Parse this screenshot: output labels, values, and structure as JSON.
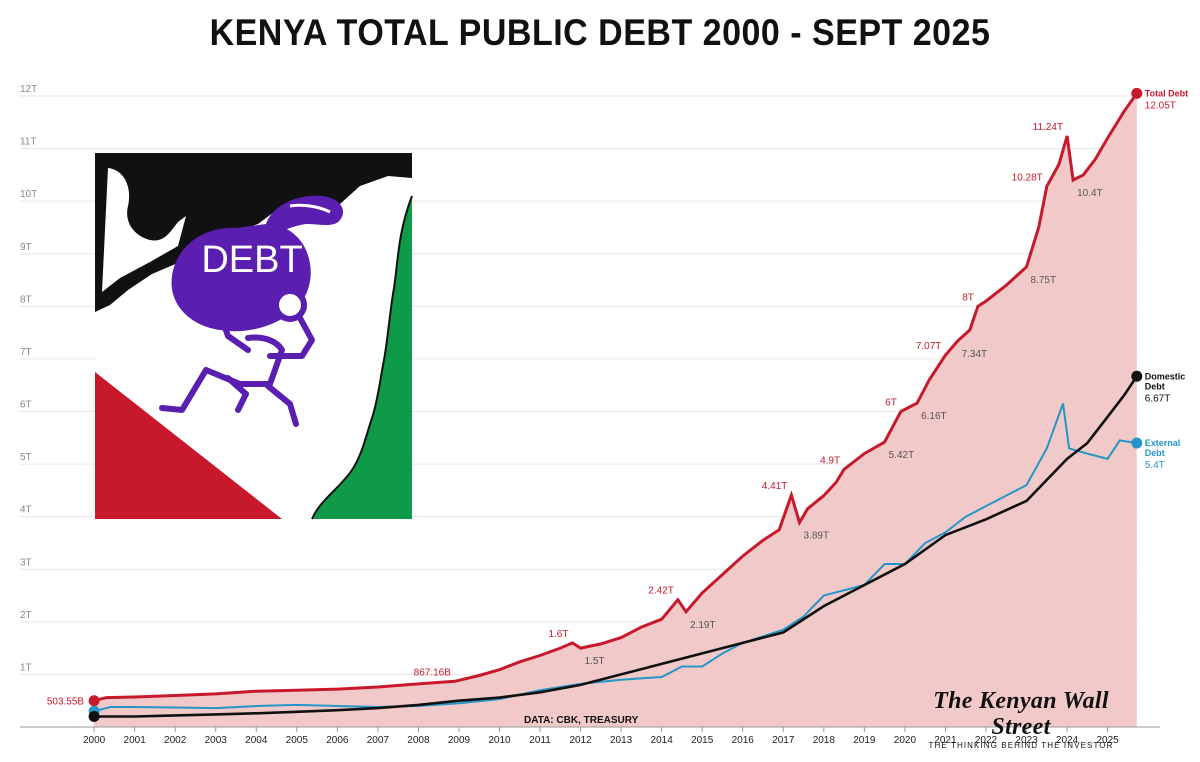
{
  "title": "KENYA TOTAL PUBLIC DEBT 2000 - SEPT 2025",
  "source": "DATA: CBK, TREASURY",
  "brand": {
    "name": "The Kenyan Wall Street",
    "tagline": "THE THINKING BEHIND THE INVESTOR"
  },
  "logo": {
    "text": "DEBT",
    "icon": "debt-bag-kenya-map-icon",
    "colors": {
      "black": "#111111",
      "red": "#c8192c",
      "green": "#0e9a48",
      "purple": "#5a1fb0"
    }
  },
  "colors": {
    "total": "#c8192c",
    "total_fill": "#f2c9c9",
    "domestic": "#111111",
    "external": "#2596c7",
    "grid": "#e6e6e6"
  },
  "chart_data": {
    "type": "area",
    "title": "KENYA TOTAL PUBLIC DEBT 2000 - SEPT 2025",
    "xlabel": "",
    "ylabel": "",
    "xlim": [
      1999.8,
      2025.75
    ],
    "ylim": [
      0,
      12
    ],
    "y_unit": "T",
    "grid": true,
    "legend": "direct labels at line ends",
    "x_ticks": [
      "2000",
      "2001",
      "2002",
      "2003",
      "2004",
      "2005",
      "2006",
      "2007",
      "2008",
      "2009",
      "2010",
      "2011",
      "2012",
      "2013",
      "2014",
      "2015",
      "2016",
      "2017",
      "2018",
      "2019",
      "2020",
      "2021",
      "2022",
      "2023",
      "2024",
      "2025"
    ],
    "y_ticks": [
      "1T",
      "2T",
      "3T",
      "4T",
      "5T",
      "6T",
      "7T",
      "8T",
      "9T",
      "10T",
      "11T",
      "12T"
    ],
    "series": [
      {
        "name": "Total Debt",
        "end_label": "12.05T",
        "points": [
          [
            2000.0,
            0.5
          ],
          [
            2000.3,
            0.56
          ],
          [
            2001,
            0.57
          ],
          [
            2002,
            0.6
          ],
          [
            2003,
            0.63
          ],
          [
            2004,
            0.68
          ],
          [
            2005,
            0.7
          ],
          [
            2006,
            0.72
          ],
          [
            2007,
            0.76
          ],
          [
            2008,
            0.82
          ],
          [
            2008.9,
            0.87
          ],
          [
            2009.5,
            0.98
          ],
          [
            2010,
            1.09
          ],
          [
            2010.5,
            1.24
          ],
          [
            2011,
            1.36
          ],
          [
            2011.5,
            1.5
          ],
          [
            2011.8,
            1.6
          ],
          [
            2012.0,
            1.5
          ],
          [
            2012.5,
            1.58
          ],
          [
            2013,
            1.7
          ],
          [
            2013.5,
            1.9
          ],
          [
            2014,
            2.05
          ],
          [
            2014.4,
            2.42
          ],
          [
            2014.6,
            2.19
          ],
          [
            2015,
            2.55
          ],
          [
            2015.5,
            2.9
          ],
          [
            2016,
            3.25
          ],
          [
            2016.5,
            3.55
          ],
          [
            2016.9,
            3.75
          ],
          [
            2017.2,
            4.41
          ],
          [
            2017.4,
            3.89
          ],
          [
            2017.6,
            4.15
          ],
          [
            2018,
            4.4
          ],
          [
            2018.3,
            4.65
          ],
          [
            2018.5,
            4.9
          ],
          [
            2019,
            5.2
          ],
          [
            2019.5,
            5.42
          ],
          [
            2019.9,
            6.0
          ],
          [
            2020.3,
            6.16
          ],
          [
            2020.6,
            6.6
          ],
          [
            2021.0,
            7.07
          ],
          [
            2021.3,
            7.34
          ],
          [
            2021.6,
            7.55
          ],
          [
            2021.8,
            8.0
          ],
          [
            2022,
            8.1
          ],
          [
            2022.5,
            8.4
          ],
          [
            2023.0,
            8.75
          ],
          [
            2023.3,
            9.5
          ],
          [
            2023.5,
            10.28
          ],
          [
            2023.8,
            10.7
          ],
          [
            2024.0,
            11.24
          ],
          [
            2024.15,
            10.4
          ],
          [
            2024.4,
            10.5
          ],
          [
            2024.7,
            10.8
          ],
          [
            2025.0,
            11.2
          ],
          [
            2025.4,
            11.7
          ],
          [
            2025.72,
            12.05
          ]
        ],
        "annotations": [
          {
            "x": 2000.0,
            "y": 0.5,
            "text": "503.55B"
          },
          {
            "x": 2008.9,
            "y": 0.87,
            "text": "867.16B"
          },
          {
            "x": 2011.8,
            "y": 1.6,
            "text": "1.6T"
          },
          {
            "x": 2012.0,
            "y": 1.5,
            "text": "1.5T"
          },
          {
            "x": 2014.4,
            "y": 2.42,
            "text": "2.42T"
          },
          {
            "x": 2014.6,
            "y": 2.19,
            "text": "2.19T"
          },
          {
            "x": 2017.2,
            "y": 4.41,
            "text": "4.41T"
          },
          {
            "x": 2017.4,
            "y": 3.89,
            "text": "3.89T"
          },
          {
            "x": 2018.5,
            "y": 4.9,
            "text": "4.9T"
          },
          {
            "x": 2019.5,
            "y": 5.42,
            "text": "5.42T"
          },
          {
            "x": 2019.9,
            "y": 6.0,
            "text": "6T"
          },
          {
            "x": 2020.3,
            "y": 6.16,
            "text": "6.16T"
          },
          {
            "x": 2021.0,
            "y": 7.07,
            "text": "7.07T"
          },
          {
            "x": 2021.3,
            "y": 7.34,
            "text": "7.34T"
          },
          {
            "x": 2021.8,
            "y": 8.0,
            "text": "8T"
          },
          {
            "x": 2023.0,
            "y": 8.75,
            "text": "8.75T"
          },
          {
            "x": 2023.5,
            "y": 10.28,
            "text": "10.28T"
          },
          {
            "x": 2024.0,
            "y": 11.24,
            "text": "11.24T"
          },
          {
            "x": 2024.15,
            "y": 10.4,
            "text": "10.4T"
          }
        ]
      },
      {
        "name": "Domestic Debt",
        "end_label": "6.67T",
        "points": [
          [
            2000.0,
            0.2
          ],
          [
            2001,
            0.2
          ],
          [
            2002,
            0.22
          ],
          [
            2003,
            0.24
          ],
          [
            2004,
            0.26
          ],
          [
            2005,
            0.29
          ],
          [
            2006,
            0.32
          ],
          [
            2007,
            0.36
          ],
          [
            2008,
            0.42
          ],
          [
            2009,
            0.5
          ],
          [
            2010,
            0.56
          ],
          [
            2011,
            0.66
          ],
          [
            2012,
            0.8
          ],
          [
            2013,
            1.0
          ],
          [
            2014,
            1.2
          ],
          [
            2015,
            1.4
          ],
          [
            2016,
            1.6
          ],
          [
            2017,
            1.8
          ],
          [
            2018,
            2.3
          ],
          [
            2019,
            2.7
          ],
          [
            2020,
            3.1
          ],
          [
            2021,
            3.65
          ],
          [
            2022,
            3.95
          ],
          [
            2023,
            4.3
          ],
          [
            2023.5,
            4.7
          ],
          [
            2024,
            5.1
          ],
          [
            2024.5,
            5.4
          ],
          [
            2025,
            5.9
          ],
          [
            2025.4,
            6.3
          ],
          [
            2025.72,
            6.67
          ]
        ]
      },
      {
        "name": "External Debt",
        "end_label": "5.4T",
        "points": [
          [
            2000.0,
            0.3
          ],
          [
            2000.4,
            0.38
          ],
          [
            2001,
            0.38
          ],
          [
            2002,
            0.37
          ],
          [
            2003,
            0.36
          ],
          [
            2004,
            0.4
          ],
          [
            2005,
            0.42
          ],
          [
            2006,
            0.4
          ],
          [
            2007,
            0.38
          ],
          [
            2008,
            0.4
          ],
          [
            2009,
            0.45
          ],
          [
            2010,
            0.53
          ],
          [
            2011,
            0.7
          ],
          [
            2012,
            0.82
          ],
          [
            2013,
            0.9
          ],
          [
            2014,
            0.95
          ],
          [
            2014.5,
            1.15
          ],
          [
            2015,
            1.15
          ],
          [
            2015.5,
            1.4
          ],
          [
            2016,
            1.6
          ],
          [
            2017,
            1.85
          ],
          [
            2017.5,
            2.1
          ],
          [
            2018,
            2.5
          ],
          [
            2019,
            2.7
          ],
          [
            2019.5,
            3.1
          ],
          [
            2020,
            3.1
          ],
          [
            2020.5,
            3.5
          ],
          [
            2021,
            3.7
          ],
          [
            2021.5,
            4.0
          ],
          [
            2022,
            4.2
          ],
          [
            2022.5,
            4.4
          ],
          [
            2023,
            4.6
          ],
          [
            2023.5,
            5.3
          ],
          [
            2023.9,
            6.15
          ],
          [
            2024.05,
            5.3
          ],
          [
            2024.5,
            5.2
          ],
          [
            2025,
            5.1
          ],
          [
            2025.3,
            5.45
          ],
          [
            2025.72,
            5.4
          ]
        ]
      }
    ]
  }
}
